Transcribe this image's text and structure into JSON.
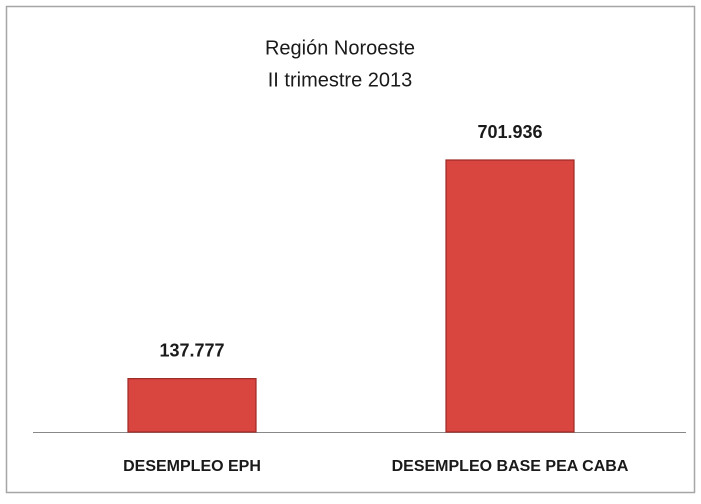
{
  "chart_data": {
    "type": "bar",
    "title": "Región Noroeste",
    "subtitle": "II trimestre 2013",
    "categories": [
      "DESEMPLEO EPH",
      "DESEMPLEO BASE PEA CABA"
    ],
    "values": [
      137777,
      701936
    ],
    "value_labels": [
      "137.777",
      "701.936"
    ],
    "color": "#d9453f"
  }
}
